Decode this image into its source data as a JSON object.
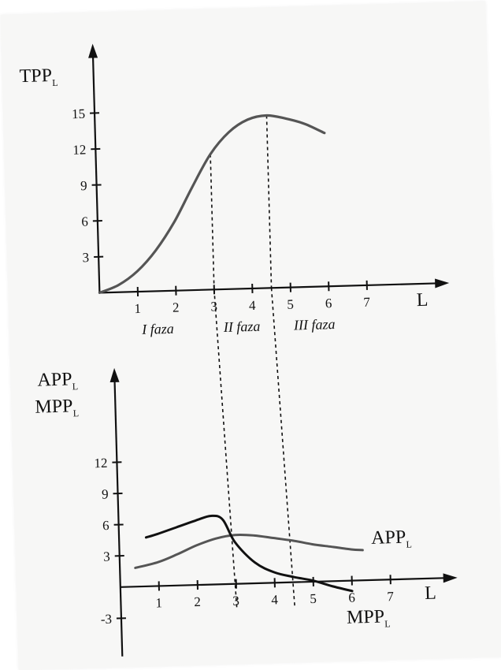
{
  "chart_data": [
    {
      "type": "line",
      "title": "",
      "xlabel": "L",
      "ylabel": {
        "main": "TPP",
        "sub": "L"
      },
      "xlim": [
        0,
        8.5
      ],
      "ylim": [
        0,
        15
      ],
      "x_ticks": [
        "1",
        "2",
        "3",
        "4",
        "5",
        "6",
        "7"
      ],
      "y_ticks": [
        "3",
        "6",
        "9",
        "12",
        "15"
      ],
      "series": [
        {
          "x": [
            0,
            0.5,
            1,
            1.5,
            2,
            2.5,
            3,
            3.5,
            4,
            4.5,
            5,
            5.5,
            6
          ],
          "values": [
            0,
            0.6,
            1.7,
            3.4,
            5.7,
            8.6,
            11.3,
            13.1,
            14.1,
            14.4,
            14.1,
            13.6,
            12.8
          ],
          "color": "#555555"
        }
      ],
      "reference_lines_x": [
        3,
        4.5
      ],
      "annotations": [
        "I faza",
        "II faza",
        "III faza"
      ]
    },
    {
      "type": "line",
      "title": "",
      "xlabel": "L",
      "ylabel": [
        {
          "main": "APP",
          "sub": "L"
        },
        {
          "main": "MPP",
          "sub": "L"
        }
      ],
      "xlim": [
        0,
        8.5
      ],
      "ylim": [
        -4,
        18
      ],
      "x_ticks": [
        "1",
        "2",
        "3",
        "4",
        "5",
        "6",
        "7"
      ],
      "y_ticks": [
        "-3",
        "3",
        "6",
        "9",
        "12"
      ],
      "series": [
        {
          "name": {
            "main": "APP",
            "sub": "L"
          },
          "x": [
            0.4,
            1,
            1.5,
            2,
            2.5,
            3,
            3.5,
            4,
            4.5,
            5,
            5.5,
            6,
            6.3
          ],
          "values": [
            1.8,
            2.3,
            3.0,
            3.8,
            4.4,
            4.7,
            4.6,
            4.3,
            4.0,
            3.6,
            3.3,
            3.0,
            2.9
          ],
          "color": "#555555"
        },
        {
          "name": {
            "main": "MPP",
            "sub": "L"
          },
          "x": [
            0.7,
            1,
            1.5,
            2,
            2.4,
            2.7,
            3,
            3.5,
            4,
            4.5,
            5,
            5.5,
            6
          ],
          "values": [
            4.7,
            5.0,
            5.6,
            6.2,
            6.6,
            6.2,
            4.0,
            2.0,
            1.0,
            0.5,
            0.1,
            -0.5,
            -1.0
          ],
          "color": "#111111"
        }
      ],
      "reference_lines_x": [
        3,
        4.5
      ]
    }
  ]
}
